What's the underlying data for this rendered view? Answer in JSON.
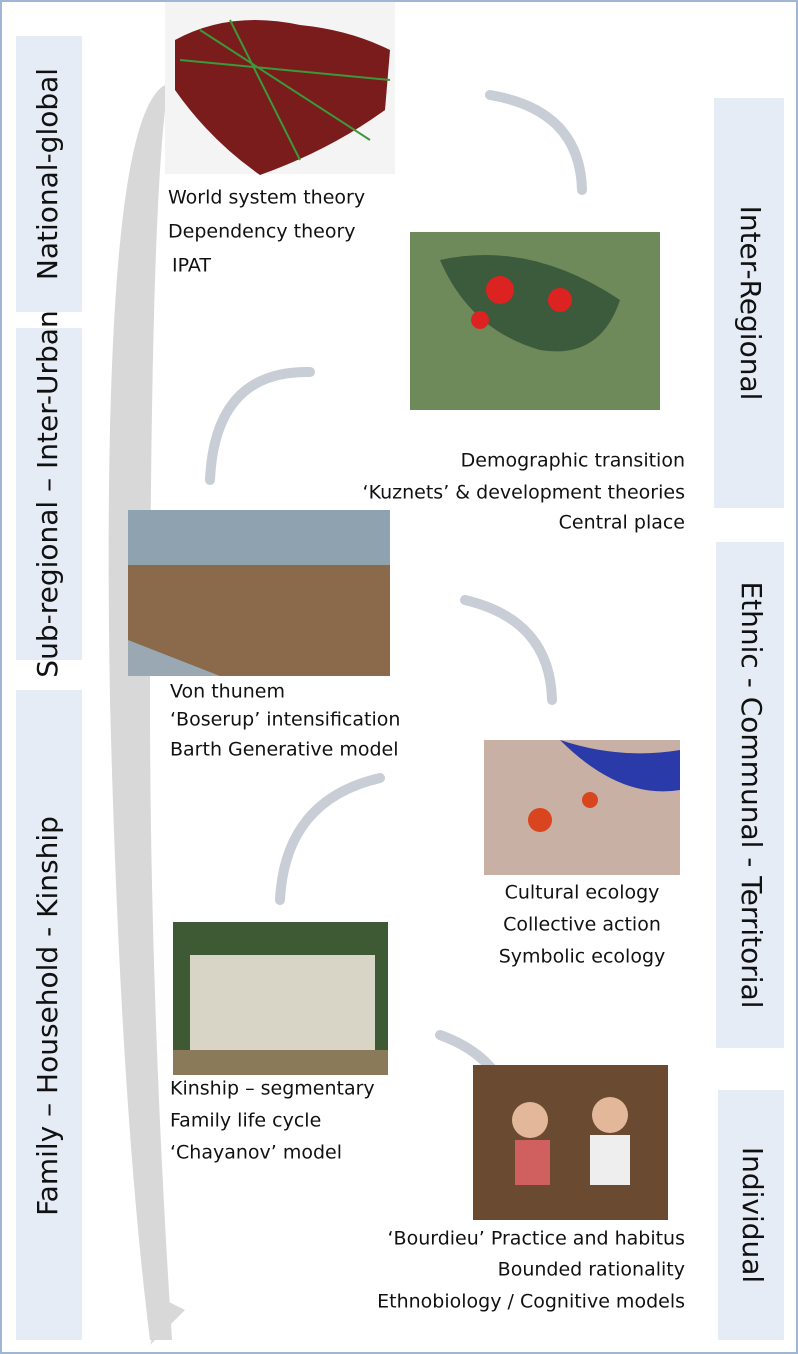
{
  "left_labels": [
    "National-global",
    "Sub-regional – Inter-Urban",
    "Family – Household - Kinship"
  ],
  "right_labels": [
    "Inter-Regional",
    "Ethnic - Communal - Territorial",
    "Individual"
  ],
  "nodes": [
    {
      "lines": [
        "World system theory",
        "Dependency theory",
        "IPAT"
      ]
    },
    {
      "lines": [
        "Demographic transition",
        "‘Kuznets’ & development theories",
        "Central place"
      ]
    },
    {
      "lines": [
        "Von thunem",
        "‘Boserup’ intensification",
        "Barth Generative model"
      ]
    },
    {
      "lines": [
        "Cultural ecology",
        "Collective action",
        "Symbolic ecology"
      ]
    },
    {
      "lines": [
        "Kinship – segmentary",
        "Family life cycle",
        "‘Chayanov’ model"
      ]
    },
    {
      "lines": [
        "‘Bourdieu’ Practice and habitus",
        "Bounded rationality",
        "Ethnobiology / Cognitive models"
      ]
    }
  ]
}
